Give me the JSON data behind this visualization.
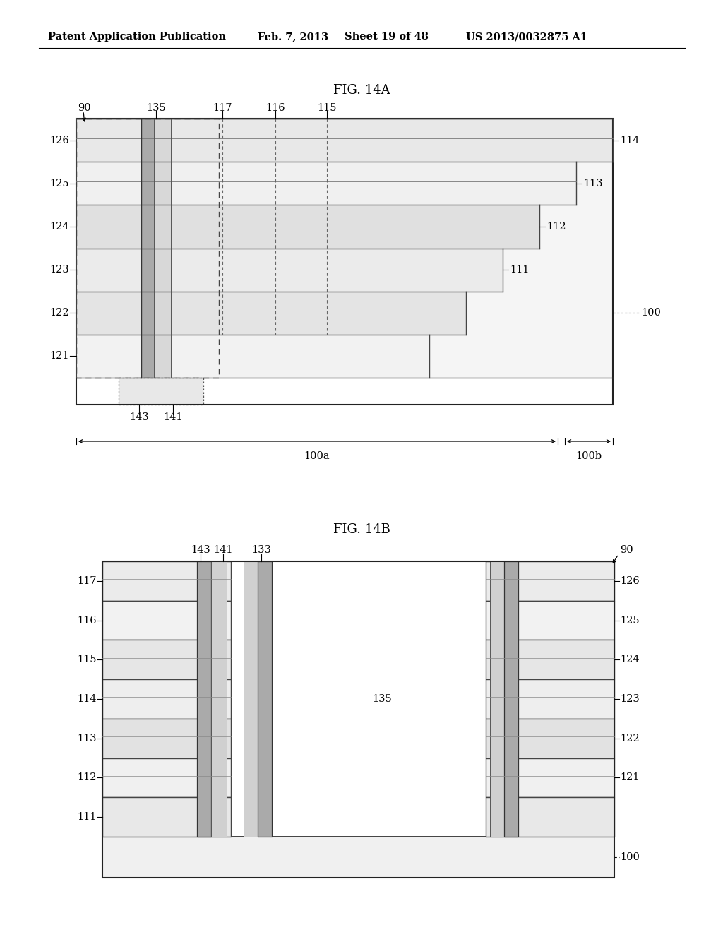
{
  "bg_color": "#ffffff",
  "header_text": "Patent Application Publication",
  "header_date": "Feb. 7, 2013",
  "header_sheet": "Sheet 19 of 48",
  "header_patent": "US 2013/0032875 A1",
  "fig14a_title": "FIG. 14A",
  "fig14b_title": "FIG. 14B",
  "lc": "#000000",
  "fill_white": "#ffffff",
  "fill_light": "#eeeeee",
  "fill_med": "#d8d8d8",
  "fill_dark": "#b8b8b8",
  "plug_dark": "#999999",
  "plug_light": "#cccccc"
}
